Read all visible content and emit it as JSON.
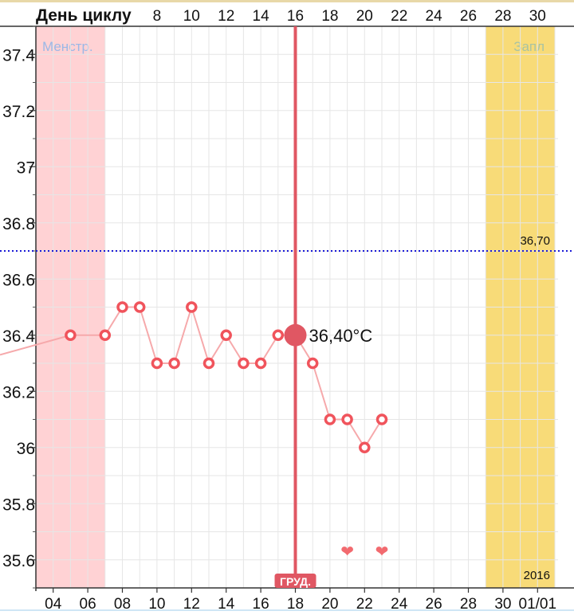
{
  "chart_data": {
    "type": "line",
    "title": "",
    "top_axis_label": "День циклу",
    "top_ticks": [
      "8",
      "10",
      "12",
      "14",
      "16",
      "18",
      "20",
      "22",
      "24",
      "26",
      "28",
      "30"
    ],
    "bottom_ticks": [
      "04",
      "06",
      "08",
      "10",
      "12",
      "14",
      "16",
      "18",
      "20",
      "22",
      "24",
      "26",
      "28",
      "30",
      "01/01"
    ],
    "y_ticks": [
      "37.4",
      "37.2",
      "37",
      "36.8",
      "36.6",
      "36.4",
      "36.2",
      "36",
      "35.8",
      "35.6"
    ],
    "ylim": [
      35.5,
      37.5
    ],
    "x_date_range": [
      "03",
      "01/02"
    ],
    "grid": true,
    "series": [
      {
        "x": [
          "05",
          "07",
          "08",
          "09",
          "10",
          "11",
          "12",
          "13",
          "14",
          "15",
          "16",
          "17",
          "18",
          "19",
          "20",
          "21",
          "22",
          "23"
        ],
        "values": [
          36.4,
          36.4,
          36.5,
          36.5,
          36.3,
          36.3,
          36.5,
          36.3,
          36.4,
          36.3,
          36.3,
          36.4,
          36.4,
          36.3,
          36.1,
          36.1,
          36.0,
          36.1
        ]
      }
    ],
    "line_start_value": 36.33,
    "selected": {
      "x": "18",
      "value": 36.4,
      "label": "36,40°C",
      "marker_label": "ГРУД."
    },
    "reference_line": {
      "value": 36.7,
      "label": "36,70",
      "color": "#1a1ad6",
      "style": "dotted"
    },
    "bands": [
      {
        "label": "Менстр.",
        "from": "03",
        "to": "07",
        "color": "#ffd2d4",
        "label_color": "#9bb8e6"
      },
      {
        "label": "Запл",
        "from": "29",
        "to": "01/02",
        "color": "#f8db78",
        "label_color": "#a9c3a2"
      }
    ],
    "heart_markers": [
      {
        "x": "21",
        "value": 35.63
      },
      {
        "x": "23",
        "value": 35.63
      }
    ],
    "year_label": "2016",
    "colors": {
      "series_line": "#f6a9ab",
      "point": "#f0545c",
      "selected_line": "#e05763",
      "heart": "#f26a6f",
      "grid": "#e6e6e6"
    }
  }
}
